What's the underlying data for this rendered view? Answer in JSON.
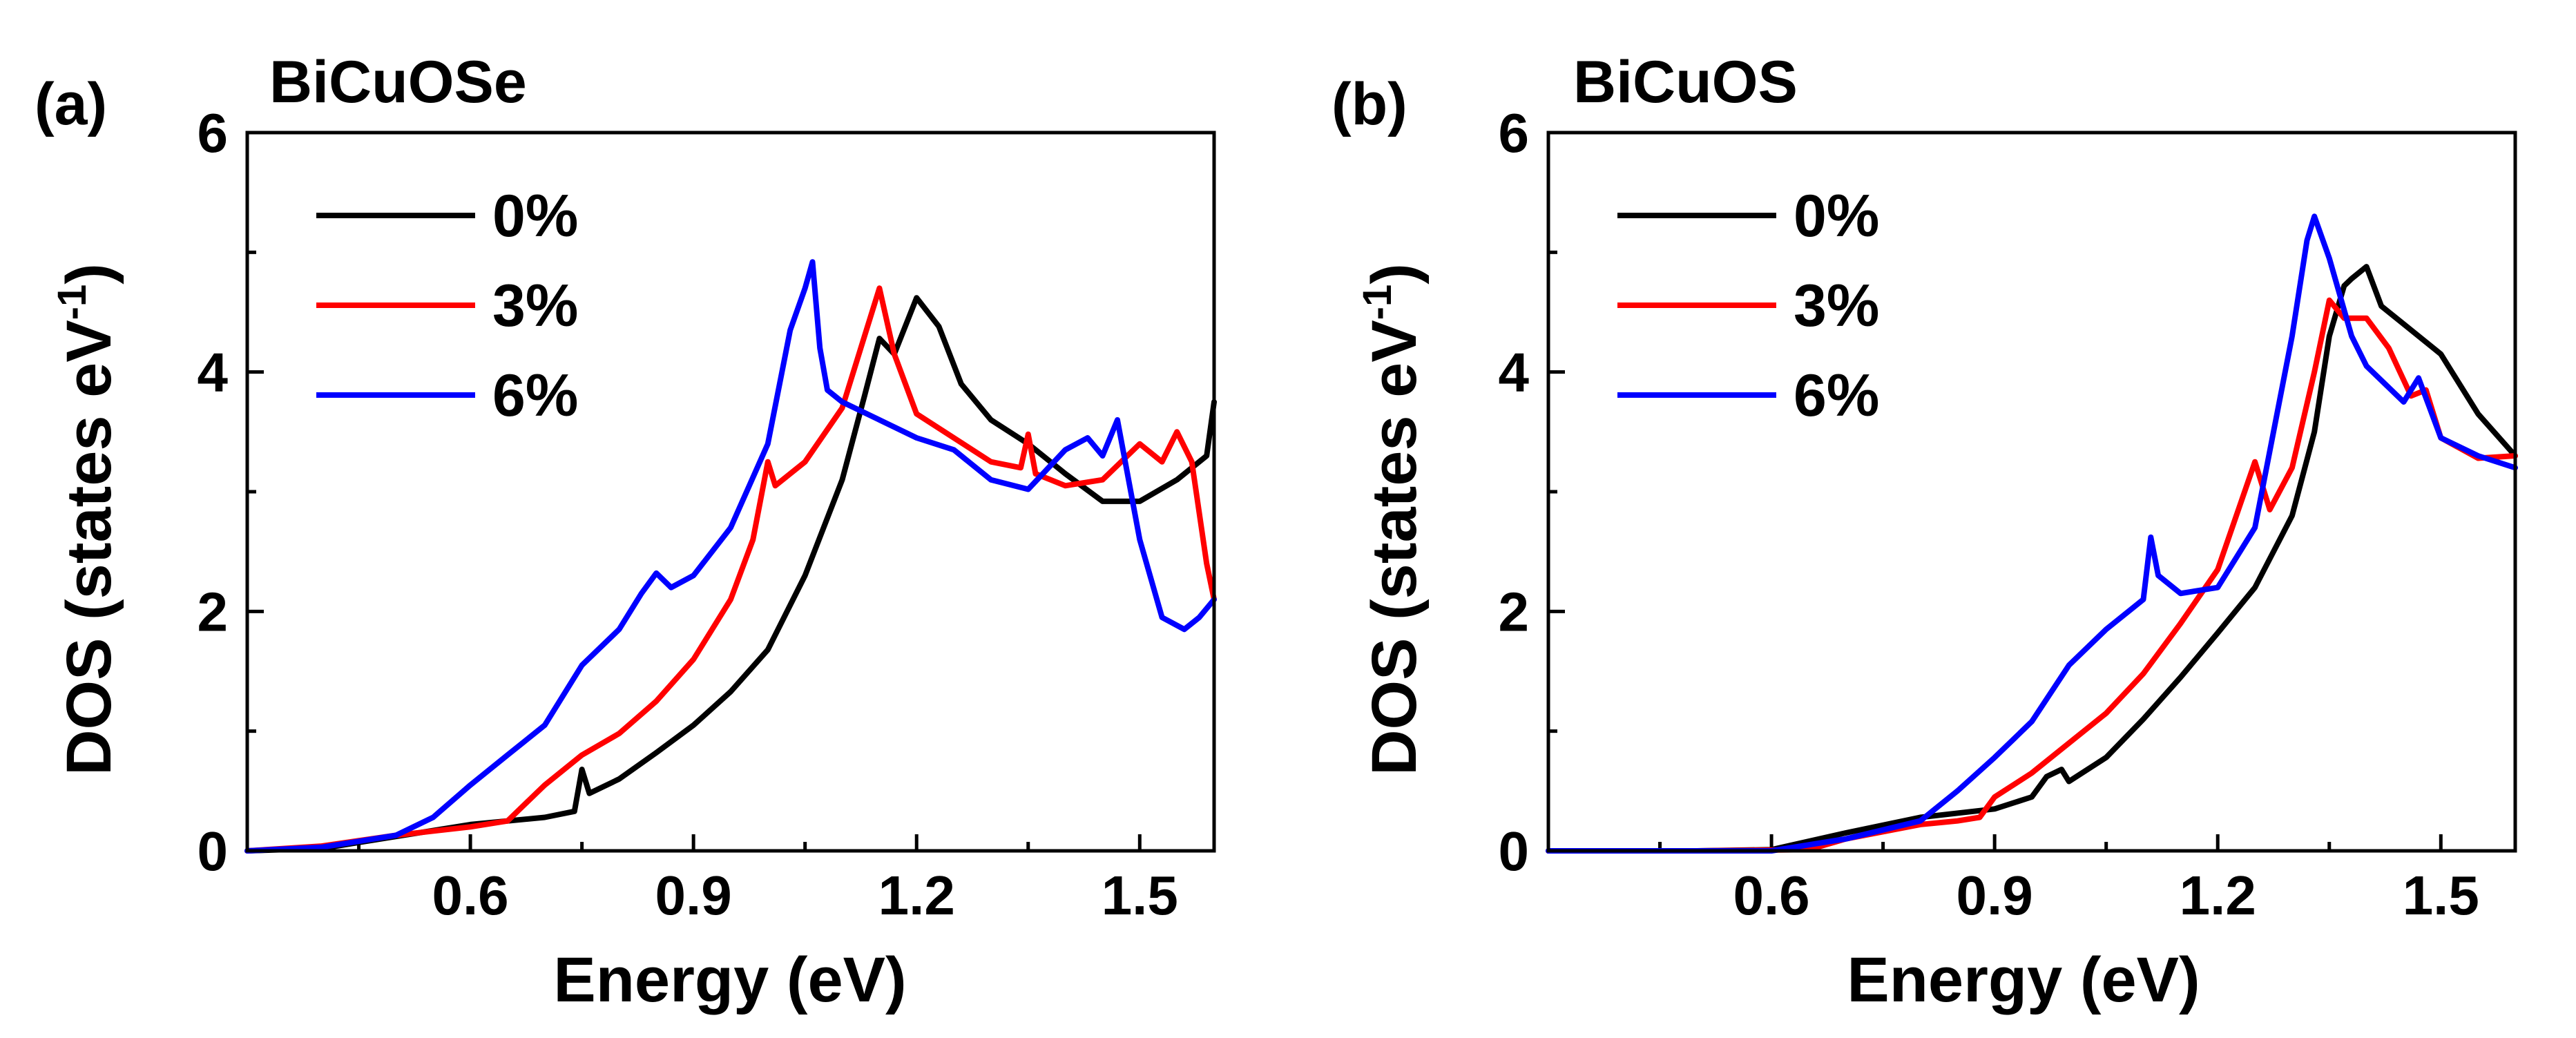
{
  "chart_data": [
    {
      "type": "line",
      "panel_label": "(a)",
      "title": "BiCuOSe",
      "xlabel": "Energy (eV)",
      "ylabel": "DOS (states eV",
      "ylabel_sup": "-1",
      "ylabel_close": ")",
      "xlim": [
        0.3,
        1.6
      ],
      "ylim": [
        0,
        6
      ],
      "xticks": [
        0.6,
        0.9,
        1.2,
        1.5
      ],
      "xtick_labels": [
        "0.6",
        "0.9",
        "1.2",
        "1.5"
      ],
      "yticks": [
        0,
        2,
        4,
        6
      ],
      "ytick_labels": [
        "0",
        "2",
        "4",
        "6"
      ],
      "legend_position": "top-left",
      "series": [
        {
          "name": "0%",
          "color": "#000000",
          "x": [
            0.3,
            0.4,
            0.5,
            0.6,
            0.7,
            0.74,
            0.75,
            0.76,
            0.8,
            0.85,
            0.9,
            0.95,
            1.0,
            1.05,
            1.1,
            1.13,
            1.15,
            1.17,
            1.2,
            1.23,
            1.26,
            1.3,
            1.35,
            1.4,
            1.45,
            1.5,
            1.55,
            1.59,
            1.6
          ],
          "y": [
            0,
            0.02,
            0.12,
            0.22,
            0.28,
            0.33,
            0.68,
            0.48,
            0.6,
            0.82,
            1.05,
            1.33,
            1.68,
            2.3,
            3.1,
            3.8,
            4.28,
            4.15,
            4.62,
            4.38,
            3.9,
            3.6,
            3.4,
            3.15,
            2.92,
            2.92,
            3.1,
            3.3,
            3.75
          ]
        },
        {
          "name": "3%",
          "color": "#ff0000",
          "x": [
            0.3,
            0.4,
            0.5,
            0.6,
            0.65,
            0.7,
            0.75,
            0.8,
            0.85,
            0.9,
            0.95,
            0.98,
            1.0,
            1.01,
            1.05,
            1.1,
            1.13,
            1.15,
            1.17,
            1.2,
            1.25,
            1.3,
            1.34,
            1.35,
            1.36,
            1.4,
            1.45,
            1.5,
            1.53,
            1.55,
            1.57,
            1.59,
            1.6
          ],
          "y": [
            0,
            0.04,
            0.13,
            0.2,
            0.25,
            0.55,
            0.8,
            0.98,
            1.25,
            1.6,
            2.1,
            2.6,
            3.25,
            3.05,
            3.25,
            3.7,
            4.3,
            4.7,
            4.15,
            3.65,
            3.45,
            3.25,
            3.2,
            3.48,
            3.15,
            3.05,
            3.1,
            3.4,
            3.25,
            3.5,
            3.25,
            2.4,
            2.1
          ]
        },
        {
          "name": "6%",
          "color": "#0000ff",
          "x": [
            0.3,
            0.4,
            0.5,
            0.55,
            0.6,
            0.65,
            0.7,
            0.75,
            0.8,
            0.83,
            0.85,
            0.87,
            0.9,
            0.95,
            1.0,
            1.03,
            1.05,
            1.06,
            1.07,
            1.08,
            1.1,
            1.15,
            1.2,
            1.25,
            1.3,
            1.35,
            1.4,
            1.43,
            1.45,
            1.47,
            1.5,
            1.53,
            1.56,
            1.58,
            1.6
          ],
          "y": [
            0,
            0.03,
            0.13,
            0.28,
            0.55,
            0.8,
            1.05,
            1.55,
            1.85,
            2.15,
            2.32,
            2.2,
            2.3,
            2.7,
            3.4,
            4.35,
            4.7,
            4.92,
            4.2,
            3.85,
            3.75,
            3.6,
            3.45,
            3.35,
            3.1,
            3.02,
            3.35,
            3.45,
            3.3,
            3.6,
            2.6,
            1.95,
            1.85,
            1.95,
            2.1
          ]
        }
      ]
    },
    {
      "type": "line",
      "panel_label": "(b)",
      "title": "BiCuOS",
      "xlabel": "Energy (eV)",
      "ylabel": "DOS (states eV",
      "ylabel_sup": "-1",
      "ylabel_close": ")",
      "xlim": [
        0.3,
        1.6
      ],
      "ylim": [
        0,
        6
      ],
      "xticks": [
        0.6,
        0.9,
        1.2,
        1.5
      ],
      "xtick_labels": [
        "0.6",
        "0.9",
        "1.2",
        "1.5"
      ],
      "yticks": [
        0,
        2,
        4,
        6
      ],
      "ytick_labels": [
        "0",
        "2",
        "4",
        "6"
      ],
      "legend_position": "top-left",
      "series": [
        {
          "name": "0%",
          "color": "#000000",
          "x": [
            0.3,
            0.5,
            0.6,
            0.7,
            0.8,
            0.9,
            0.95,
            0.97,
            0.99,
            1.0,
            1.05,
            1.1,
            1.15,
            1.2,
            1.25,
            1.3,
            1.33,
            1.35,
            1.37,
            1.38,
            1.4,
            1.42,
            1.45,
            1.5,
            1.55,
            1.6
          ],
          "y": [
            0,
            0,
            0.01,
            0.15,
            0.28,
            0.35,
            0.45,
            0.62,
            0.68,
            0.58,
            0.78,
            1.1,
            1.45,
            1.82,
            2.2,
            2.8,
            3.5,
            4.3,
            4.72,
            4.78,
            4.88,
            4.55,
            4.4,
            4.15,
            3.65,
            3.3
          ]
        },
        {
          "name": "3%",
          "color": "#ff0000",
          "x": [
            0.3,
            0.5,
            0.65,
            0.7,
            0.8,
            0.85,
            0.88,
            0.9,
            0.95,
            1.0,
            1.05,
            1.1,
            1.15,
            1.2,
            1.25,
            1.27,
            1.3,
            1.33,
            1.35,
            1.37,
            1.4,
            1.43,
            1.46,
            1.48,
            1.5,
            1.55,
            1.6
          ],
          "y": [
            0,
            0,
            0.01,
            0.1,
            0.22,
            0.25,
            0.28,
            0.45,
            0.65,
            0.9,
            1.15,
            1.48,
            1.9,
            2.35,
            3.25,
            2.85,
            3.2,
            4.0,
            4.6,
            4.45,
            4.45,
            4.2,
            3.8,
            3.85,
            3.45,
            3.28,
            3.3
          ]
        },
        {
          "name": "6%",
          "color": "#0000ff",
          "x": [
            0.3,
            0.5,
            0.6,
            0.65,
            0.7,
            0.8,
            0.85,
            0.9,
            0.95,
            1.0,
            1.05,
            1.1,
            1.11,
            1.12,
            1.15,
            1.2,
            1.25,
            1.3,
            1.32,
            1.33,
            1.35,
            1.38,
            1.4,
            1.45,
            1.47,
            1.5,
            1.55,
            1.6
          ],
          "y": [
            0,
            0,
            0,
            0.05,
            0.1,
            0.25,
            0.5,
            0.78,
            1.08,
            1.55,
            1.85,
            2.1,
            2.62,
            2.3,
            2.15,
            2.2,
            2.7,
            4.3,
            5.1,
            5.3,
            4.95,
            4.3,
            4.05,
            3.75,
            3.95,
            3.45,
            3.3,
            3.2
          ]
        }
      ]
    }
  ]
}
